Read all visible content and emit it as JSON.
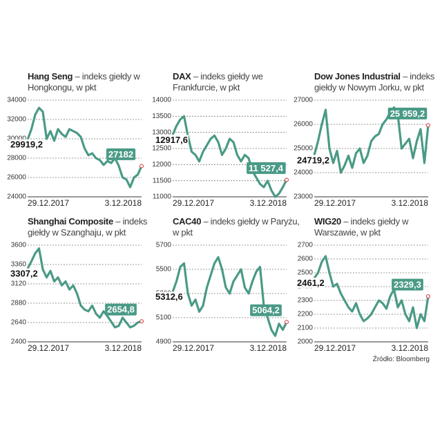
{
  "chart_data": [
    {
      "type": "line",
      "title": "Hang Seng",
      "subtitle": "– indeks giełdy w Hongkongu, w pkt",
      "color": "#4a9a86",
      "grid": true,
      "categories": [
        "29.12.2017",
        null,
        null,
        null,
        null,
        null,
        null,
        null,
        null,
        null,
        null,
        null,
        null,
        null,
        null,
        null,
        null,
        null,
        null,
        null,
        null,
        null,
        null,
        null,
        null,
        null,
        null,
        null,
        null,
        null,
        "3.12.2018"
      ],
      "values": [
        29919.2,
        31000,
        32500,
        33200,
        32800,
        30000,
        30800,
        29800,
        31000,
        30500,
        30200,
        31000,
        30800,
        30600,
        30200,
        29000,
        28300,
        28500,
        28000,
        27800,
        27300,
        27700,
        27500,
        28000,
        27200,
        26000,
        25800,
        25000,
        26000,
        26300,
        27182
      ],
      "value_labels": [
        "29919,2",
        null,
        null,
        null,
        null,
        null,
        null,
        null,
        null,
        null,
        null,
        null,
        null,
        null,
        null,
        null,
        null,
        null,
        null,
        null,
        null,
        null,
        null,
        null,
        null,
        null,
        null,
        null,
        null,
        null,
        "27182"
      ],
      "ylim": [
        24000,
        34000
      ],
      "yticks": [
        24000,
        26000,
        28000,
        30000,
        32000,
        34000
      ]
    },
    {
      "type": "line",
      "title": "DAX",
      "subtitle": "– indeks giełdy we Frankfurcie, w pkt",
      "color": "#4a9a86",
      "grid": true,
      "categories": [
        "29.12.2017",
        null,
        null,
        null,
        null,
        null,
        null,
        null,
        null,
        null,
        null,
        null,
        null,
        null,
        null,
        null,
        null,
        null,
        null,
        null,
        null,
        null,
        null,
        null,
        null,
        null,
        null,
        null,
        null,
        null,
        "3.12.2018"
      ],
      "values": [
        12917.6,
        13200,
        13400,
        13500,
        12900,
        12400,
        12300,
        12100,
        12400,
        12600,
        12800,
        12900,
        12700,
        12300,
        12500,
        12800,
        12700,
        12300,
        12100,
        12300,
        12200,
        11800,
        11600,
        11400,
        11300,
        11500,
        11200,
        11000,
        11100,
        11300,
        11527.4
      ],
      "value_labels": [
        "12917,6",
        null,
        null,
        null,
        null,
        null,
        null,
        null,
        null,
        null,
        null,
        null,
        null,
        null,
        null,
        null,
        null,
        null,
        null,
        null,
        null,
        null,
        null,
        null,
        null,
        null,
        null,
        null,
        null,
        null,
        "11 527,4"
      ],
      "ylim": [
        11000,
        14000
      ],
      "yticks": [
        11000,
        11500,
        12000,
        12500,
        13000,
        13500,
        14000
      ]
    },
    {
      "type": "line",
      "title": "Dow Jones Industrial",
      "subtitle": "– indeks giełdy w Nowym Jorku, w pkt",
      "color": "#4a9a86",
      "grid": true,
      "categories": [
        "29.12.2017",
        null,
        null,
        null,
        null,
        null,
        null,
        null,
        null,
        null,
        null,
        null,
        null,
        null,
        null,
        null,
        null,
        null,
        null,
        null,
        null,
        null,
        null,
        null,
        null,
        null,
        null,
        null,
        null,
        null,
        "3.12.2018"
      ],
      "values": [
        24719.2,
        25300,
        26000,
        26600,
        25000,
        24400,
        24900,
        24000,
        24300,
        24700,
        24200,
        24800,
        25000,
        24400,
        24700,
        25300,
        25500,
        25600,
        26000,
        26200,
        26500,
        26700,
        26400,
        25000,
        25200,
        25400,
        24600,
        25300,
        25800,
        24400,
        25959.2
      ],
      "value_labels": [
        "24719,2",
        null,
        null,
        null,
        null,
        null,
        null,
        null,
        null,
        null,
        null,
        null,
        null,
        null,
        null,
        null,
        null,
        null,
        null,
        null,
        null,
        null,
        null,
        null,
        null,
        null,
        null,
        null,
        null,
        null,
        "25 959,2"
      ],
      "ylim": [
        23000,
        27000
      ],
      "yticks": [
        23000,
        24000,
        25000,
        26000,
        27000
      ]
    },
    {
      "type": "line",
      "title": "Shanghai Composite",
      "subtitle": "– indeks giełdy w Szanghaju, w pkt",
      "color": "#4a9a86",
      "grid": true,
      "categories": [
        "29.12.2017",
        null,
        null,
        null,
        null,
        null,
        null,
        null,
        null,
        null,
        null,
        null,
        null,
        null,
        null,
        null,
        null,
        null,
        null,
        null,
        null,
        null,
        null,
        null,
        null,
        null,
        null,
        null,
        null,
        null,
        "3.12.2018"
      ],
      "values": [
        3307.2,
        3400,
        3500,
        3560,
        3300,
        3200,
        3280,
        3150,
        3200,
        3100,
        3150,
        3050,
        3100,
        3000,
        2850,
        2800,
        2780,
        2850,
        2750,
        2700,
        2780,
        2720,
        2650,
        2580,
        2600,
        2700,
        2640,
        2580,
        2600,
        2640,
        2654.8
      ],
      "value_labels": [
        "3307,2",
        null,
        null,
        null,
        null,
        null,
        null,
        null,
        null,
        null,
        null,
        null,
        null,
        null,
        null,
        null,
        null,
        null,
        null,
        null,
        null,
        null,
        null,
        null,
        null,
        null,
        null,
        null,
        null,
        null,
        "2654,8"
      ],
      "ylim": [
        2400,
        3600
      ],
      "yticks": [
        2400,
        2640,
        2880,
        3120,
        3360,
        3600
      ]
    },
    {
      "type": "line",
      "title": "CAC40",
      "subtitle": "– indeks giełdy w Paryżu, w pkt",
      "color": "#4a9a86",
      "grid": true,
      "categories": [
        "29.12.2017",
        null,
        null,
        null,
        null,
        null,
        null,
        null,
        null,
        null,
        null,
        null,
        null,
        null,
        null,
        null,
        null,
        null,
        null,
        null,
        null,
        null,
        null,
        null,
        null,
        null,
        null,
        null,
        null,
        null,
        "3.12.2018"
      ],
      "values": [
        5312.6,
        5400,
        5520,
        5550,
        5300,
        5200,
        5250,
        5150,
        5200,
        5350,
        5450,
        5550,
        5600,
        5500,
        5350,
        5300,
        5400,
        5450,
        5500,
        5350,
        5300,
        5400,
        5480,
        5520,
        5200,
        5100,
        5000,
        4950,
        5050,
        5000,
        5064.2
      ],
      "value_labels": [
        "5312,6",
        null,
        null,
        null,
        null,
        null,
        null,
        null,
        null,
        null,
        null,
        null,
        null,
        null,
        null,
        null,
        null,
        null,
        null,
        null,
        null,
        null,
        null,
        null,
        null,
        null,
        null,
        null,
        null,
        null,
        "5064,2"
      ],
      "ylim": [
        4900,
        5700
      ],
      "yticks": [
        4900,
        5100,
        5300,
        5500,
        5700
      ]
    },
    {
      "type": "line",
      "title": "WIG20",
      "subtitle": "– indeks giełdy w Warszawie, w pkt",
      "color": "#4a9a86",
      "grid": true,
      "categories": [
        "29.12.2017",
        null,
        null,
        null,
        null,
        null,
        null,
        null,
        null,
        null,
        null,
        null,
        null,
        null,
        null,
        null,
        null,
        null,
        null,
        null,
        null,
        null,
        null,
        null,
        null,
        null,
        null,
        null,
        null,
        null,
        "3.12.2018"
      ],
      "values": [
        2461.2,
        2500,
        2580,
        2620,
        2500,
        2400,
        2420,
        2350,
        2300,
        2250,
        2220,
        2280,
        2200,
        2150,
        2170,
        2200,
        2250,
        2300,
        2280,
        2240,
        2330,
        2380,
        2250,
        2300,
        2200,
        2150,
        2250,
        2100,
        2200,
        2150,
        2329.3
      ],
      "value_labels": [
        "2461,2",
        null,
        null,
        null,
        null,
        null,
        null,
        null,
        null,
        null,
        null,
        null,
        null,
        null,
        null,
        null,
        null,
        null,
        null,
        null,
        null,
        null,
        null,
        null,
        null,
        null,
        null,
        null,
        null,
        null,
        "2329,3"
      ],
      "ylim": [
        2000,
        2700
      ],
      "yticks": [
        2000,
        2100,
        2200,
        2300,
        2400,
        2500,
        2600,
        2700
      ]
    }
  ],
  "source": "Źródło: Bloomberg"
}
